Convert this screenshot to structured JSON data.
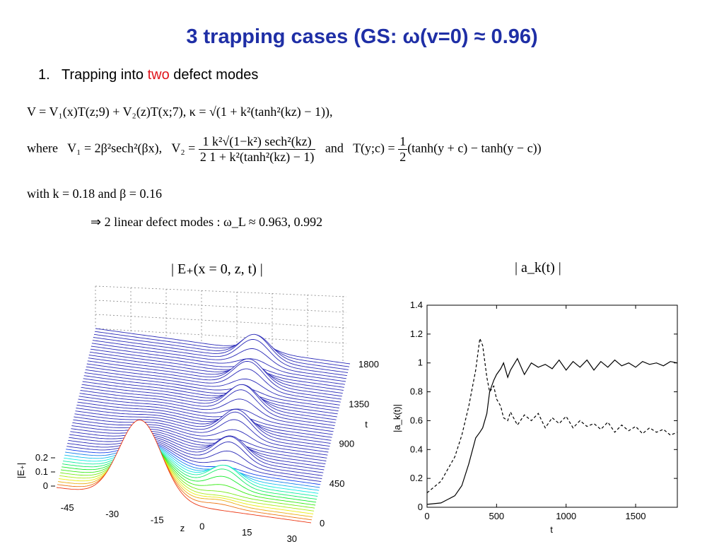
{
  "slide": {
    "title": "3 trapping cases   (GS: ω(v=0) ≈ 0.96)",
    "bullet_number": "1.",
    "bullet_text_before": "Trapping into ",
    "bullet_highlight": "two",
    "bullet_text_after": " defect modes",
    "highlight_color": "#e0141b",
    "title_color": "#1f2fa6"
  },
  "equations": {
    "line1": "V = V₁(x)T(z;9) + V₂(z)T(x;7),   κ = √(1 + k²(tanh²(kz) − 1)),",
    "where_label": "where",
    "v1": "V₁ = 2β²sech²(βx),",
    "v2_lhs": "V₂ =",
    "v2_num": "1  k²√(1−k²) sech²(kz)",
    "v2_den": "2  1 + k²(tanh²(kz) − 1)",
    "and_label": "and",
    "t_lhs": "T(y;c) =",
    "t_num": "1",
    "t_den": "2",
    "t_rhs": "(tanh(y + c) − tanh(y − c))",
    "with_line": "with   k = 0.18  and  β = 0.16",
    "result_line": "⇒   2 linear defect modes :  ω_L ≈ 0.963,  0.992"
  },
  "left_plot": {
    "label": "| E₊(x = 0, z, t) |",
    "z_axis_label": "z",
    "t_axis_label": "t",
    "e_axis_label": "|E₊|",
    "z_ticks": [
      "-45",
      "-30",
      "-15",
      "0",
      "15",
      "30"
    ],
    "t_ticks": [
      "0",
      "450",
      "900",
      "1350",
      "1800"
    ],
    "e_ticks": [
      "0",
      "0.1",
      "0.2"
    ]
  },
  "right_plot": {
    "label": "| a_k(t) |",
    "xlabel": "t",
    "ylabel": "|a_k(t)|",
    "x_ticks": [
      "0",
      "500",
      "1000",
      "1500"
    ],
    "y_ticks": [
      "0",
      "0.2",
      "0.4",
      "0.6",
      "0.8",
      "1",
      "1.2",
      "1.4"
    ]
  },
  "chart_data": [
    {
      "type": "line",
      "title": "",
      "xlabel": "t",
      "ylabel": "|a_k(t)|",
      "xlim": [
        0,
        1800
      ],
      "ylim": [
        0,
        1.4
      ],
      "grid": false,
      "x": [
        0,
        100,
        200,
        250,
        300,
        350,
        380,
        400,
        430,
        450,
        480,
        500,
        530,
        550,
        580,
        600,
        650,
        700,
        750,
        800,
        850,
        900,
        950,
        1000,
        1050,
        1100,
        1150,
        1200,
        1250,
        1300,
        1350,
        1400,
        1450,
        1500,
        1550,
        1600,
        1650,
        1700,
        1750,
        1800
      ],
      "series": [
        {
          "style": "solid",
          "values": [
            0.02,
            0.03,
            0.08,
            0.15,
            0.3,
            0.48,
            0.52,
            0.55,
            0.65,
            0.8,
            0.88,
            0.92,
            0.96,
            1.0,
            0.9,
            0.95,
            1.03,
            0.92,
            1.0,
            0.97,
            0.99,
            0.96,
            1.02,
            0.95,
            1.01,
            0.97,
            1.02,
            0.95,
            1.01,
            0.97,
            1.02,
            0.98,
            1.0,
            0.97,
            1.01,
            0.99,
            1.0,
            0.98,
            1.01,
            1.0
          ]
        },
        {
          "style": "dashed",
          "values": [
            0.1,
            0.18,
            0.35,
            0.5,
            0.7,
            0.95,
            1.17,
            1.12,
            0.9,
            0.8,
            0.84,
            0.75,
            0.7,
            0.62,
            0.6,
            0.66,
            0.57,
            0.64,
            0.6,
            0.65,
            0.55,
            0.62,
            0.58,
            0.63,
            0.55,
            0.6,
            0.56,
            0.58,
            0.54,
            0.59,
            0.52,
            0.57,
            0.53,
            0.56,
            0.51,
            0.55,
            0.52,
            0.54,
            0.5,
            0.52
          ]
        }
      ]
    }
  ]
}
